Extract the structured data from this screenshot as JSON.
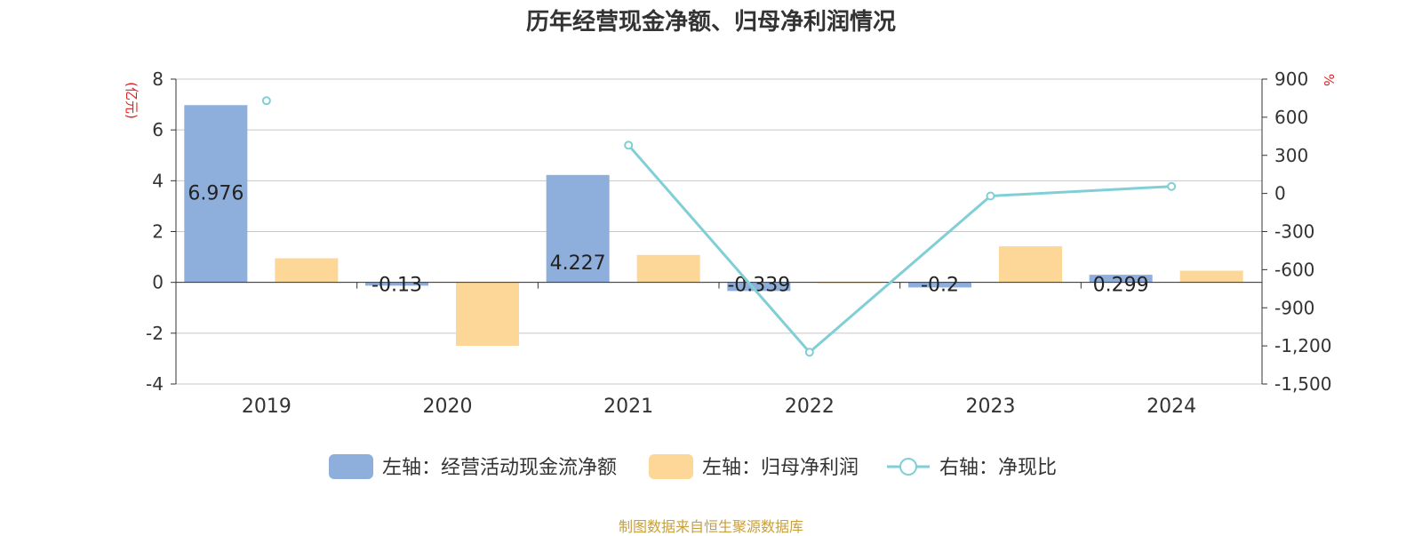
{
  "chart_data": {
    "type": "bar",
    "title": "历年经营现金净额、归母净利润情况",
    "categories": [
      "2019",
      "2020",
      "2021",
      "2022",
      "2023",
      "2024"
    ],
    "left_axis": {
      "unit": "(亿元)",
      "ylim": [
        -4,
        8
      ],
      "ticks": [
        "8",
        "6",
        "4",
        "2",
        "0",
        "-2",
        "-4"
      ]
    },
    "right_axis": {
      "unit": "%",
      "ylim": [
        -1500,
        900
      ],
      "ticks": [
        "900",
        "600",
        "300",
        "0",
        "-300",
        "-600",
        "-900",
        "-1,200",
        "-1,500"
      ]
    },
    "series": [
      {
        "name": "经营活动现金流净额",
        "axis": "left",
        "kind": "bar",
        "color": "#8eaedb",
        "values": [
          6.976,
          -0.13,
          4.227,
          -0.339,
          -0.2,
          0.299
        ],
        "labels": [
          "6.976",
          "-0.13",
          "4.227",
          "-0.339",
          "-0.2",
          "0.299"
        ]
      },
      {
        "name": "归母净利润",
        "axis": "left",
        "kind": "bar",
        "color": "#fdd797",
        "values": [
          0.95,
          -2.5,
          1.08,
          0.02,
          1.42,
          0.46
        ]
      },
      {
        "name": "净现比",
        "axis": "right",
        "kind": "line",
        "color": "#80cfd6",
        "values": [
          730,
          null,
          380,
          -1250,
          -20,
          55
        ]
      }
    ],
    "legend": {
      "position": "bottom",
      "items": [
        "左轴：经营活动现金流净额",
        "左轴：归母净利润",
        "右轴：净现比"
      ]
    },
    "grid": true
  },
  "footer": "制图数据来自恒生聚源数据库"
}
